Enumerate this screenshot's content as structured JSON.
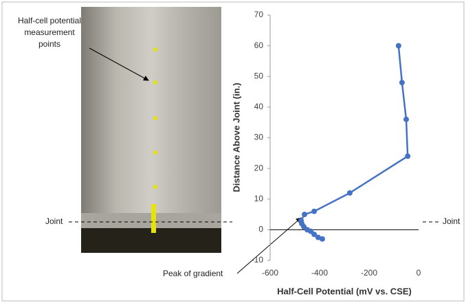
{
  "chart_data": {
    "type": "scatter",
    "line": true,
    "x_label": "Half-Cell Potential (mV vs. CSE)",
    "y_label": "Distance Above Joint (in.)",
    "x": [
      -81,
      -67,
      -50,
      -44,
      -278,
      -422,
      -461,
      -475,
      -472,
      -464,
      -450,
      -436,
      -422,
      -406,
      -389
    ],
    "values": [
      60,
      48,
      36,
      24,
      12,
      6,
      5,
      3,
      2,
      1,
      0,
      -0.5,
      -1.5,
      -2.5,
      -3
    ],
    "color": "#4472c4",
    "xlim": [
      -600,
      0
    ],
    "xticks": [
      -600,
      -400,
      -200,
      0
    ],
    "ylim": [
      -10,
      70
    ],
    "yticks": [
      -10,
      0,
      10,
      20,
      30,
      40,
      50,
      60,
      70
    ],
    "zero_line": true,
    "annotations": [
      "Half-cell potential measurement points",
      "Joint",
      "Peak of gradient",
      "Joint"
    ]
  }
}
